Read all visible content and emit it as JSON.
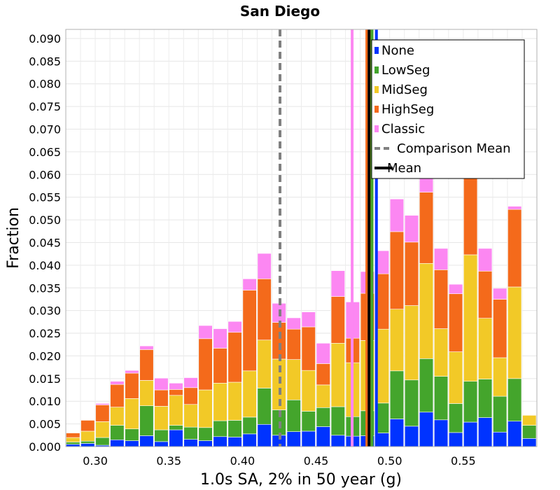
{
  "chart_data": {
    "type": "bar",
    "stacked": true,
    "title": "San Diego",
    "xlabel": "1.0s SA, 2% in 50 year (g)",
    "ylabel": "Fraction",
    "xlim": [
      0.28,
      0.6
    ],
    "ylim": [
      0.0,
      0.092
    ],
    "bin_width": 0.01,
    "grid": true,
    "legend_placement": "top-right",
    "x": [
      0.285,
      0.295,
      0.305,
      0.315,
      0.325,
      0.335,
      0.345,
      0.355,
      0.365,
      0.375,
      0.385,
      0.395,
      0.405,
      0.415,
      0.425,
      0.435,
      0.445,
      0.455,
      0.465,
      0.475,
      0.485,
      0.495,
      0.505,
      0.515,
      0.525,
      0.535,
      0.545,
      0.555,
      0.565,
      0.575,
      0.585,
      0.595
    ],
    "series": [
      {
        "name": "None",
        "color": "#0033ff",
        "values": [
          0.0005,
          0.0007,
          0.0003,
          0.0015,
          0.0013,
          0.0024,
          0.0011,
          0.0037,
          0.0016,
          0.0013,
          0.0022,
          0.0021,
          0.0028,
          0.0049,
          0.0025,
          0.0033,
          0.0034,
          0.0044,
          0.0025,
          0.0023,
          0.0024,
          0.003,
          0.0061,
          0.0045,
          0.0076,
          0.0059,
          0.0031,
          0.0054,
          0.0064,
          0.0032,
          0.0056,
          0.0018
        ]
      },
      {
        "name": "LowSeg",
        "color": "#44a52c",
        "values": [
          0.0005,
          0.0005,
          0.0017,
          0.0032,
          0.0026,
          0.0066,
          0.0026,
          0.001,
          0.0027,
          0.0029,
          0.0035,
          0.0037,
          0.0037,
          0.008,
          0.0056,
          0.007,
          0.0044,
          0.0042,
          0.0063,
          0.0043,
          0.0055,
          0.0066,
          0.0106,
          0.0102,
          0.0118,
          0.0096,
          0.0064,
          0.009,
          0.0085,
          0.0079,
          0.0094,
          0.0029
        ]
      },
      {
        "name": "MidSeg",
        "color": "#f2c927",
        "values": [
          0.001,
          0.0022,
          0.0035,
          0.004,
          0.0067,
          0.0056,
          0.0052,
          0.0066,
          0.005,
          0.0083,
          0.0083,
          0.0084,
          0.0102,
          0.0106,
          0.0112,
          0.0089,
          0.009,
          0.005,
          0.014,
          0.0119,
          0.0155,
          0.0163,
          0.0136,
          0.0164,
          0.021,
          0.0105,
          0.0114,
          0.0279,
          0.0134,
          0.0085,
          0.0202,
          0.0022
        ]
      },
      {
        "name": "HighSeg",
        "color": "#f46a1b",
        "values": [
          0.001,
          0.0024,
          0.0037,
          0.005,
          0.0056,
          0.0068,
          0.0036,
          0.0013,
          0.0037,
          0.0113,
          0.0077,
          0.011,
          0.0178,
          0.0135,
          0.0081,
          0.0067,
          0.0096,
          0.0047,
          0.0103,
          0.0054,
          0.0104,
          0.0122,
          0.0171,
          0.014,
          0.0157,
          0.013,
          0.0128,
          0.025,
          0.0104,
          0.0129,
          0.0171,
          0.0
        ]
      },
      {
        "name": "Classic",
        "color": "#fc87f2",
        "values": [
          0.0,
          0.0,
          0.0003,
          0.0007,
          0.0006,
          0.0008,
          0.0026,
          0.0014,
          0.0022,
          0.0029,
          0.0043,
          0.0024,
          0.0025,
          0.0056,
          0.0042,
          0.0025,
          0.0033,
          0.0045,
          0.0057,
          0.008,
          0.0048,
          0.0051,
          0.0072,
          0.0059,
          0.005,
          0.0047,
          0.0021,
          0.0027,
          0.005,
          0.0024,
          0.0007,
          0.0
        ]
      }
    ],
    "vertical_lines": [
      {
        "name": "Comparison Mean",
        "x": 0.4255,
        "color": "#808080",
        "style": "dashed"
      },
      {
        "name": "Classic mean",
        "x": 0.4745,
        "color": "#fc87f2",
        "style": "solid"
      },
      {
        "name": "HighSeg mean",
        "x": 0.4845,
        "color": "#f46a1b",
        "style": "solid"
      },
      {
        "name": "MidSeg mean",
        "x": 0.4865,
        "color": "#f2c927",
        "style": "solid"
      },
      {
        "name": "LowSeg mean",
        "x": 0.488,
        "color": "#44a52c",
        "style": "solid"
      },
      {
        "name": "None mean",
        "x": 0.491,
        "color": "#0033ff",
        "style": "solid"
      },
      {
        "name": "Mean",
        "x": 0.486,
        "color": "#000000",
        "style": "solid"
      }
    ],
    "x_ticks": [
      "0.30",
      "0.35",
      "0.40",
      "0.45",
      "0.50",
      "0.55"
    ],
    "y_ticks": [
      "0.000",
      "0.005",
      "0.010",
      "0.015",
      "0.020",
      "0.025",
      "0.030",
      "0.035",
      "0.040",
      "0.045",
      "0.050",
      "0.055",
      "0.060",
      "0.065",
      "0.070",
      "0.075",
      "0.080",
      "0.085",
      "0.090"
    ],
    "legend": [
      {
        "label": "None",
        "color": "#0033ff",
        "kind": "box"
      },
      {
        "label": "LowSeg",
        "color": "#44a52c",
        "kind": "box"
      },
      {
        "label": "MidSeg",
        "color": "#f2c927",
        "kind": "box"
      },
      {
        "label": "HighSeg",
        "color": "#f46a1b",
        "kind": "box"
      },
      {
        "label": "Classic",
        "color": "#fc87f2",
        "kind": "box"
      },
      {
        "label": "Comparison Mean",
        "color": "#808080",
        "kind": "dashed"
      },
      {
        "label": "Mean",
        "color": "#000000",
        "kind": "line"
      }
    ]
  }
}
